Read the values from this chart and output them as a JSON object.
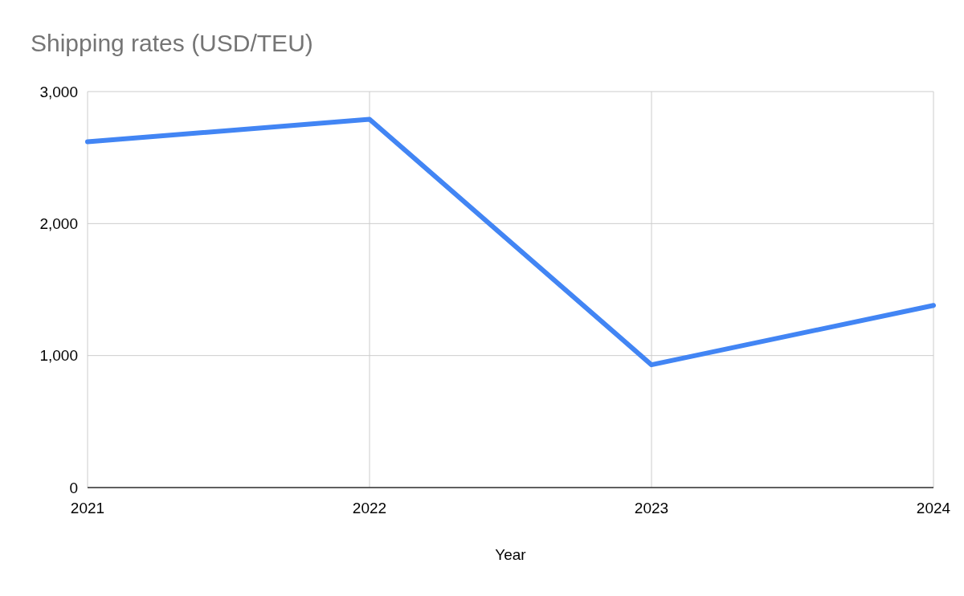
{
  "chart_data": {
    "type": "line",
    "title": "Shipping rates (USD/TEU)",
    "xlabel": "Year",
    "categories": [
      "2021",
      "2022",
      "2023",
      "2024"
    ],
    "series": [
      {
        "color": "#4285f4",
        "values": [
          2620,
          2790,
          930,
          1380
        ]
      }
    ],
    "ylim": [
      0,
      3000
    ],
    "yticks": [
      {
        "value": 0,
        "label": "0"
      },
      {
        "value": 1000,
        "label": "1,000"
      },
      {
        "value": 2000,
        "label": "2,000"
      },
      {
        "value": 3000,
        "label": "3,000"
      }
    ],
    "grid": true,
    "marker": "none",
    "line_style": "solid"
  }
}
